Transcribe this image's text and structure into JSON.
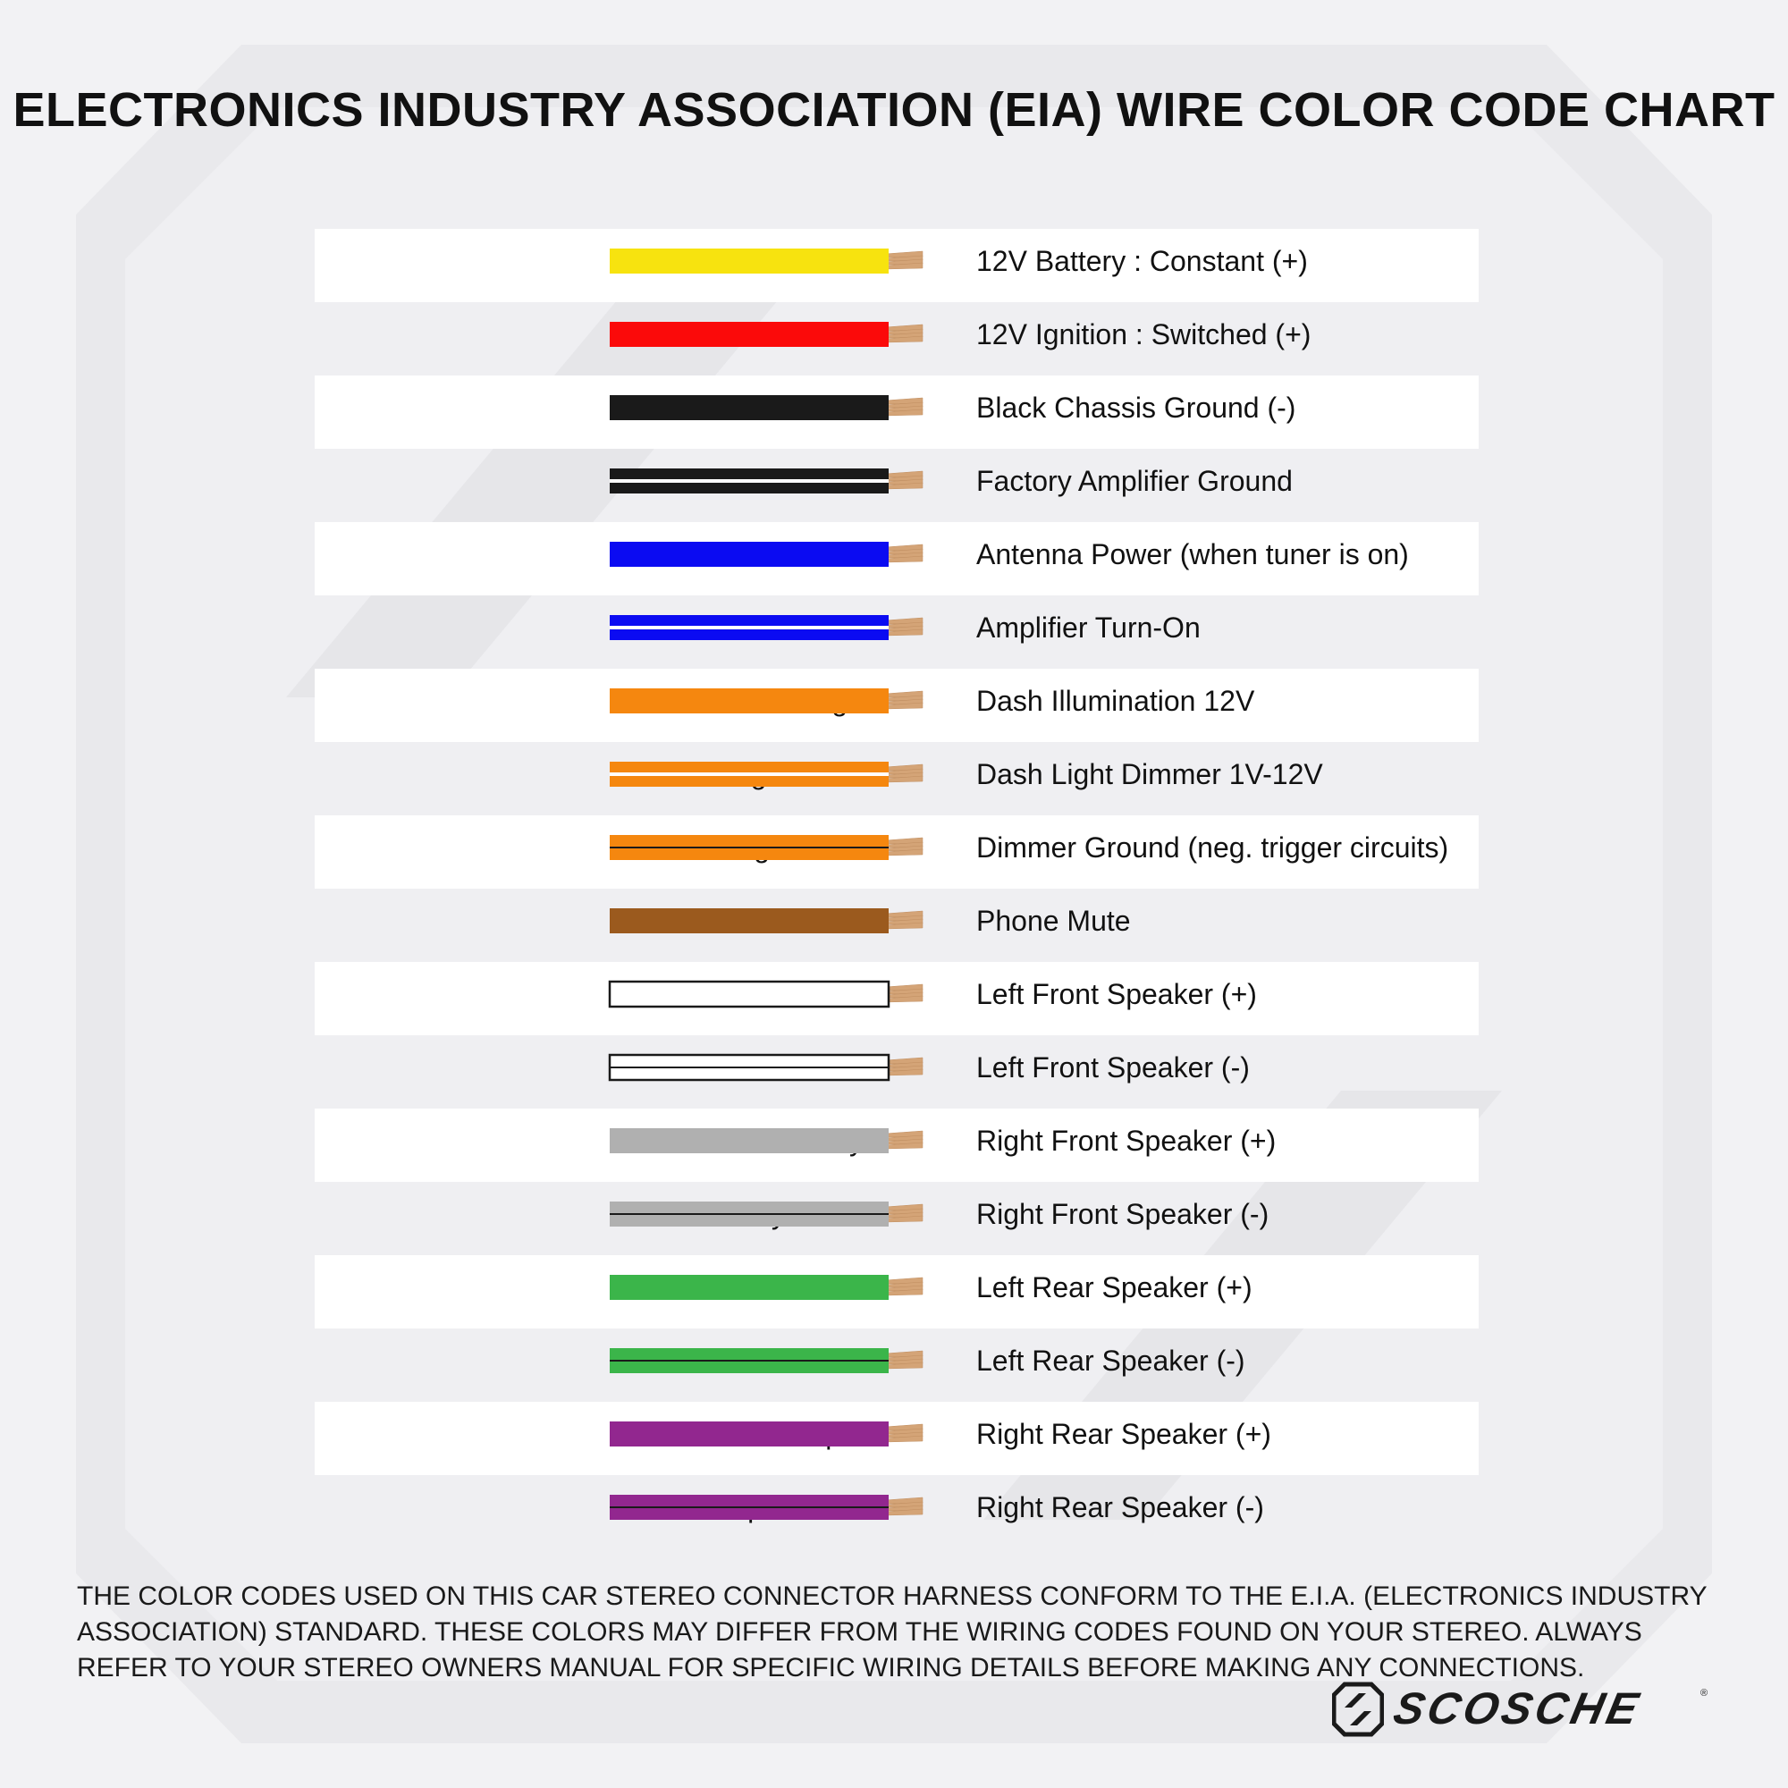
{
  "title": "ELECTRONICS INDUSTRY ASSOCIATION (EIA) WIRE COLOR CODE CHART",
  "rows": [
    {
      "color_name": "Yellow",
      "function": "12V Battery : Constant (+)",
      "primary": "#f7e30f",
      "stripe": null
    },
    {
      "color_name": "Red",
      "function": "12V Ignition : Switched (+)",
      "primary": "#fb0a0a",
      "stripe": null
    },
    {
      "color_name": "Black",
      "function": "Black Chassis Ground (-)",
      "primary": "#1a1a1a",
      "stripe": null
    },
    {
      "color_name": "Black/White",
      "function": "Factory Amplifier Ground",
      "primary": "#1a1a1a",
      "stripe": "#ffffff"
    },
    {
      "color_name": "Blue",
      "function": "Antenna Power (when tuner is on)",
      "primary": "#0b0bf2",
      "stripe": null
    },
    {
      "color_name": "Blue/White",
      "function": "Amplifier Turn-On",
      "primary": "#0b0bf2",
      "stripe": "#ffffff"
    },
    {
      "color_name": "Orange",
      "function": "Dash Illumination 12V",
      "primary": "#f5870f",
      "stripe": null
    },
    {
      "color_name": "Orange/White",
      "function": "Dash Light Dimmer 1V-12V",
      "primary": "#f5870f",
      "stripe": "#ffffff"
    },
    {
      "color_name": "Orange/Black",
      "function": "Dimmer Ground (neg. trigger circuits)",
      "primary": "#f5870f",
      "stripe": "#1a1a1a"
    },
    {
      "color_name": "Brown",
      "function": "Phone Mute",
      "primary": "#9b5a1e",
      "stripe": null
    },
    {
      "color_name": "White",
      "function": "Left Front Speaker (+)",
      "primary": "#ffffff",
      "stripe": null
    },
    {
      "color_name": "White/Black",
      "function": "Left Front Speaker (-)",
      "primary": "#ffffff",
      "stripe": "#1a1a1a"
    },
    {
      "color_name": "Gray",
      "function": "Right Front Speaker (+)",
      "primary": "#b0b0b0",
      "stripe": null
    },
    {
      "color_name": "Gray/Black",
      "function": "Right Front Speaker (-)",
      "primary": "#b0b0b0",
      "stripe": "#1a1a1a"
    },
    {
      "color_name": "Green",
      "function": "Left Rear Speaker (+)",
      "primary": "#3bb54a",
      "stripe": null
    },
    {
      "color_name": "Green/Black",
      "function": "Left Rear Speaker (-)",
      "primary": "#3bb54a",
      "stripe": "#1a1a1a"
    },
    {
      "color_name": "Purple",
      "function": "Right Rear Speaker (+)",
      "primary": "#92278f",
      "stripe": null
    },
    {
      "color_name": "Purple/Black",
      "function": "Right Rear Speaker (-)",
      "primary": "#92278f",
      "stripe": "#1a1a1a"
    }
  ],
  "copper_color": "#d4a477",
  "footnote": "THE COLOR CODES USED ON THIS CAR STEREO CONNECTOR HARNESS CONFORM TO THE E.I.A. (ELECTRONICS INDUSTRY ASSOCIATION) STANDARD. THESE COLORS MAY DIFFER FROM THE WIRING CODES FOUND ON YOUR STEREO. ALWAYS REFER TO YOUR STEREO OWNERS MANUAL FOR SPECIFIC WIRING DETAILS BEFORE MAKING ANY CONNECTIONS.",
  "brand": {
    "name": "SCOSCHE",
    "registered_mark": "®",
    "icon": "scosche-logo-icon"
  }
}
